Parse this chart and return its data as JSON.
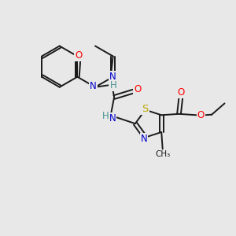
{
  "bg_color": "#e8e8e8",
  "bond_color": "#1a1a1a",
  "bond_width": 1.4,
  "atom_colors": {
    "O": "#ff0000",
    "N": "#0000cc",
    "S": "#bbaa00",
    "H": "#4a9090",
    "C": "#1a1a1a"
  },
  "fs": 8.5
}
